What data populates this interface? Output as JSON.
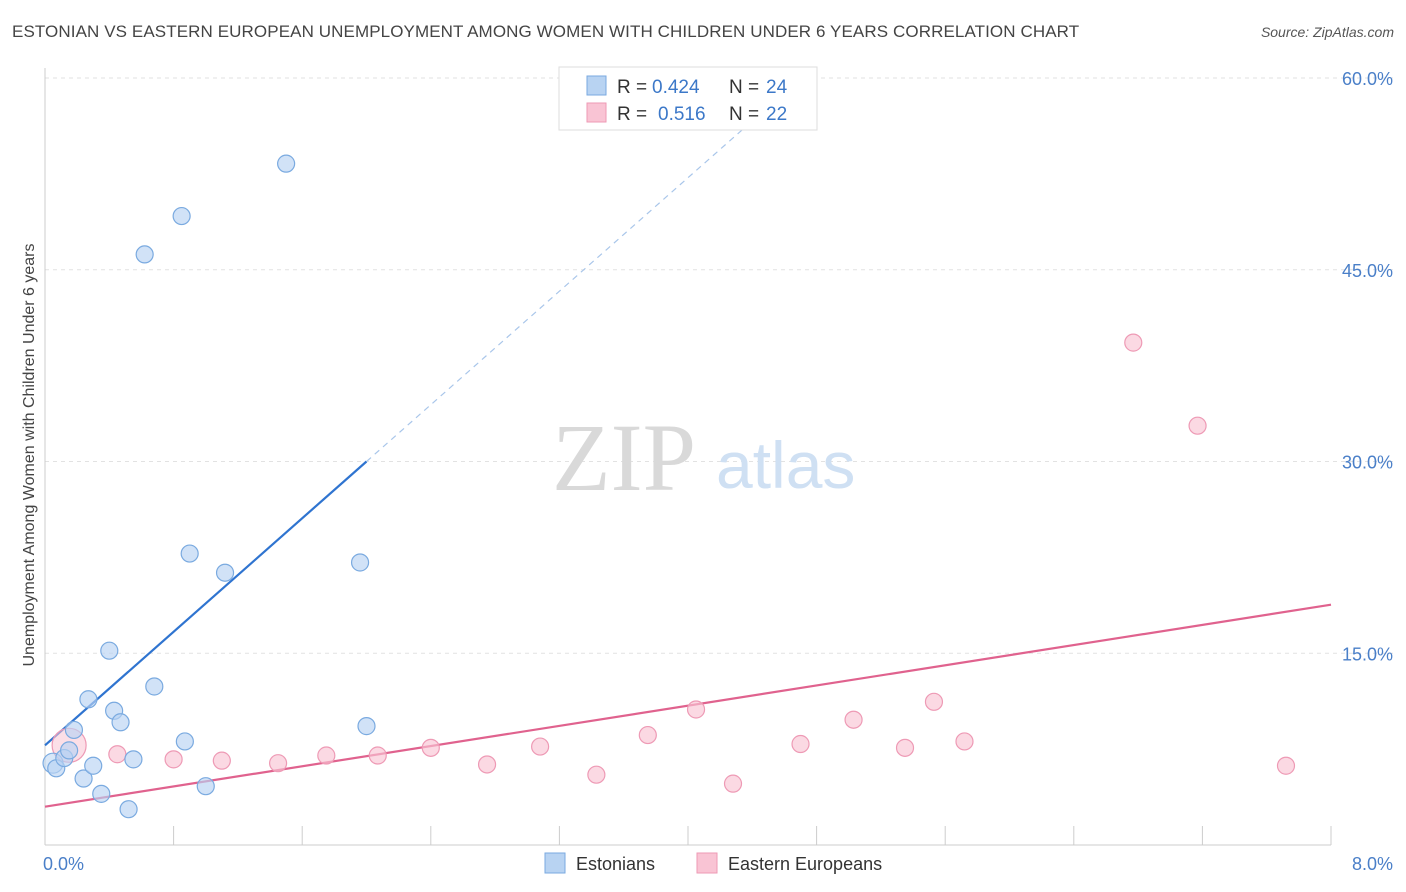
{
  "title": "ESTONIAN VS EASTERN EUROPEAN UNEMPLOYMENT AMONG WOMEN WITH CHILDREN UNDER 6 YEARS CORRELATION CHART",
  "source": "Source: ZipAtlas.com",
  "watermark": {
    "zip": "ZIP",
    "atlas": "atlas"
  },
  "colors": {
    "estonians_fill": "#b8d3f2",
    "estonians_stroke": "#7aaae0",
    "estonians_line": "#2f74d0",
    "eastern_fill": "#f9c4d4",
    "eastern_stroke": "#ee9ab5",
    "eastern_line": "#e0628e",
    "grid": "#e2e2e2",
    "tick_text": "#4a7fc8"
  },
  "legend": {
    "rows": [
      {
        "r_label": "R =",
        "r_value": "0.424",
        "n_label": "N =",
        "n_value": "24"
      },
      {
        "r_label": "R =",
        "r_value": "0.516",
        "n_label": "N =",
        "n_value": "22"
      }
    ]
  },
  "chart_data": {
    "type": "scatter",
    "title": "ESTONIAN VS EASTERN EUROPEAN UNEMPLOYMENT AMONG WOMEN WITH CHILDREN UNDER 6 YEARS CORRELATION CHART",
    "xlabel": "",
    "ylabel": "Unemployment Among Women with Children Under 6 years",
    "xlim": [
      0,
      8
    ],
    "ylim": [
      0,
      60
    ],
    "x_tick_labels": [
      "0.0%",
      "8.0%"
    ],
    "y_ticks": [
      15,
      30,
      45,
      60
    ],
    "y_tick_labels": [
      "15.0%",
      "30.0%",
      "45.0%",
      "60.0%"
    ],
    "grid": true,
    "legend_position": "top-center",
    "series": [
      {
        "name": "Estonians",
        "r": 0.424,
        "n": 24,
        "trend": {
          "x0": 0.0,
          "y0": 7.8,
          "x1": 2.0,
          "y1": 30.0,
          "dashed_to_x": 4.5
        },
        "points": [
          [
            0.05,
            6.4
          ],
          [
            0.07,
            6.0
          ],
          [
            0.12,
            6.8
          ],
          [
            0.15,
            7.4
          ],
          [
            0.18,
            9.0
          ],
          [
            0.24,
            5.2
          ],
          [
            0.27,
            11.4
          ],
          [
            0.3,
            6.2
          ],
          [
            0.35,
            4.0
          ],
          [
            0.4,
            15.2
          ],
          [
            0.43,
            10.5
          ],
          [
            0.47,
            9.6
          ],
          [
            0.52,
            2.8
          ],
          [
            0.55,
            6.7
          ],
          [
            0.62,
            46.2
          ],
          [
            0.68,
            12.4
          ],
          [
            0.85,
            49.2
          ],
          [
            0.87,
            8.1
          ],
          [
            0.9,
            22.8
          ],
          [
            1.0,
            4.6
          ],
          [
            1.12,
            21.3
          ],
          [
            1.5,
            53.3
          ],
          [
            1.96,
            22.1
          ],
          [
            2.0,
            9.3
          ]
        ]
      },
      {
        "name": "Eastern Europeans",
        "r": 0.516,
        "n": 22,
        "trend": {
          "x0": 0.0,
          "y0": 3.0,
          "x1": 8.0,
          "y1": 18.8
        },
        "points": [
          [
            0.15,
            7.8
          ],
          [
            0.45,
            7.1
          ],
          [
            0.8,
            6.7
          ],
          [
            1.1,
            6.6
          ],
          [
            1.45,
            6.4
          ],
          [
            1.75,
            7.0
          ],
          [
            2.07,
            7.0
          ],
          [
            2.4,
            7.6
          ],
          [
            2.75,
            6.3
          ],
          [
            3.08,
            7.7
          ],
          [
            3.43,
            5.5
          ],
          [
            3.75,
            8.6
          ],
          [
            4.05,
            10.6
          ],
          [
            4.28,
            4.8
          ],
          [
            4.7,
            7.9
          ],
          [
            5.03,
            9.8
          ],
          [
            5.35,
            7.6
          ],
          [
            5.53,
            11.2
          ],
          [
            5.72,
            8.1
          ],
          [
            6.77,
            39.3
          ],
          [
            7.17,
            32.8
          ],
          [
            7.72,
            6.2
          ]
        ]
      }
    ]
  }
}
